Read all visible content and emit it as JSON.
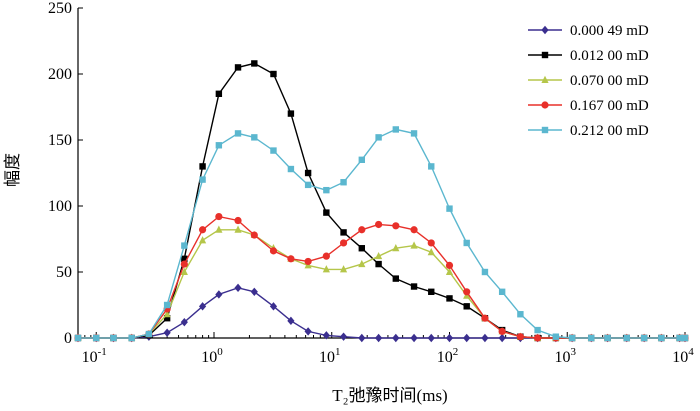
{
  "chart_data": {
    "type": "line",
    "xlabel": "T₂弛豫时间(ms)",
    "ylabel": "幅度",
    "xscale": "log",
    "xlim": [
      0.07,
      10000
    ],
    "ylim": [
      0,
      250
    ],
    "x_ticks": [
      {
        "value": 0.1,
        "base": "10",
        "exp": "-1"
      },
      {
        "value": 1,
        "base": "10",
        "exp": "0"
      },
      {
        "value": 10,
        "base": "10",
        "exp": "1"
      },
      {
        "value": 100,
        "base": "10",
        "exp": "2"
      },
      {
        "value": 1000,
        "base": "10",
        "exp": "3"
      },
      {
        "value": 10000,
        "base": "10",
        "exp": "4"
      }
    ],
    "y_ticks": [
      "0",
      "50",
      "100",
      "150",
      "200",
      "250"
    ],
    "grid": false,
    "legend_position": "top-right",
    "series": [
      {
        "name": "0.000 49 mD",
        "color": "#3b2f8f",
        "marker": "diamond",
        "x": [
          0.07,
          0.1,
          0.14,
          0.2,
          0.28,
          0.4,
          0.56,
          0.8,
          1.1,
          1.6,
          2.2,
          3.2,
          4.5,
          6.3,
          9,
          12.6,
          18,
          25,
          35,
          50,
          70,
          100,
          140,
          200,
          280,
          400,
          560,
          800,
          1100,
          1600,
          2200,
          3200,
          4500,
          6300,
          9000,
          10000
        ],
        "y": [
          0,
          0,
          0,
          0,
          1,
          4,
          12,
          24,
          33,
          38,
          35,
          24,
          13,
          5,
          2,
          1,
          0,
          0,
          0,
          0,
          0,
          0,
          0,
          0,
          0,
          0,
          0,
          0,
          0,
          0,
          0,
          0,
          0,
          0,
          0,
          0
        ]
      },
      {
        "name": "0.012 00 mD",
        "color": "#000000",
        "marker": "square",
        "x": [
          0.07,
          0.1,
          0.14,
          0.2,
          0.28,
          0.4,
          0.56,
          0.8,
          1.1,
          1.6,
          2.2,
          3.2,
          4.5,
          6.3,
          9,
          12.6,
          18,
          25,
          35,
          50,
          70,
          100,
          140,
          200,
          280,
          400,
          560,
          800,
          1100,
          1600,
          2200,
          3200,
          4500,
          6300,
          9000,
          10000
        ],
        "y": [
          0,
          0,
          0,
          0,
          2,
          15,
          60,
          130,
          185,
          205,
          208,
          200,
          170,
          125,
          95,
          80,
          68,
          56,
          45,
          39,
          35,
          30,
          24,
          15,
          6,
          1,
          0,
          0,
          0,
          0,
          0,
          0,
          0,
          0,
          0,
          0
        ]
      },
      {
        "name": "0.070 00 mD",
        "color": "#b5c64a",
        "marker": "triangle",
        "x": [
          0.07,
          0.1,
          0.14,
          0.2,
          0.28,
          0.4,
          0.56,
          0.8,
          1.1,
          1.6,
          2.2,
          3.2,
          4.5,
          6.3,
          9,
          12.6,
          18,
          25,
          35,
          50,
          70,
          100,
          140,
          200,
          280,
          400,
          560,
          800,
          1100,
          1600,
          2200,
          3200,
          4500,
          6300,
          9000,
          10000
        ],
        "y": [
          0,
          0,
          0,
          0,
          3,
          18,
          50,
          74,
          82,
          82,
          78,
          68,
          60,
          55,
          52,
          52,
          56,
          62,
          68,
          70,
          65,
          50,
          32,
          15,
          5,
          1,
          0,
          0,
          0,
          0,
          0,
          0,
          0,
          0,
          0,
          0
        ]
      },
      {
        "name": "0.167 00 mD",
        "color": "#e8302a",
        "marker": "circle",
        "x": [
          0.07,
          0.1,
          0.14,
          0.2,
          0.28,
          0.4,
          0.56,
          0.8,
          1.1,
          1.6,
          2.2,
          3.2,
          4.5,
          6.3,
          9,
          12.6,
          18,
          25,
          35,
          50,
          70,
          100,
          140,
          200,
          280,
          400,
          560,
          800,
          1100,
          1600,
          2200,
          3200,
          4500,
          6300,
          9000,
          10000
        ],
        "y": [
          0,
          0,
          0,
          0,
          3,
          22,
          56,
          82,
          92,
          89,
          78,
          66,
          60,
          58,
          62,
          72,
          82,
          86,
          85,
          82,
          72,
          55,
          35,
          15,
          5,
          1,
          0,
          0,
          0,
          0,
          0,
          0,
          0,
          0,
          0,
          0
        ]
      },
      {
        "name": "0.212 00 mD",
        "color": "#5bb7cf",
        "marker": "square",
        "x": [
          0.07,
          0.1,
          0.14,
          0.2,
          0.28,
          0.4,
          0.56,
          0.8,
          1.1,
          1.6,
          2.2,
          3.2,
          4.5,
          6.3,
          9,
          12.6,
          18,
          25,
          35,
          50,
          70,
          100,
          140,
          200,
          280,
          400,
          560,
          800,
          1100,
          1600,
          2200,
          3200,
          4500,
          6300,
          9000,
          10000
        ],
        "y": [
          0,
          0,
          0,
          0,
          3,
          25,
          70,
          120,
          146,
          155,
          152,
          142,
          128,
          116,
          112,
          118,
          135,
          152,
          158,
          155,
          130,
          98,
          72,
          50,
          35,
          18,
          6,
          1,
          0,
          0,
          0,
          0,
          0,
          0,
          0,
          0
        ]
      }
    ]
  }
}
